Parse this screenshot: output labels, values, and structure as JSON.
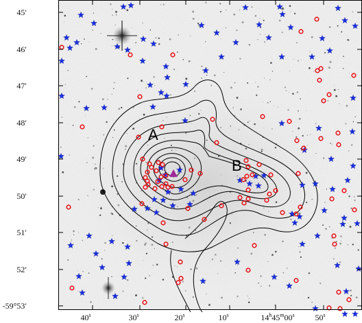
{
  "figure": {
    "y_ticks": [
      "45′",
      "46′",
      "47′",
      "48′",
      "49′",
      "50′",
      "51′",
      "52′",
      "-59°53′"
    ],
    "x_ticks": [
      {
        "sup": "s",
        "prefix": "",
        "main": "40",
        "sub": "s"
      },
      {
        "prefix": "",
        "main": "30",
        "sub": "s"
      },
      {
        "prefix": "",
        "main": "20",
        "sub": "s"
      },
      {
        "prefix": "",
        "main": "10",
        "sub": "s"
      },
      {
        "prefix": "14",
        "main": "45",
        "sub": "m",
        "tail": "00",
        "tail_sub": "s"
      },
      {
        "prefix": "",
        "main": "50",
        "sub": "s"
      }
    ],
    "x_tick_text": [
      "40s",
      "30s",
      "20s",
      "10s",
      "14h45m00s",
      "50s"
    ],
    "region_labels": [
      "A",
      "B"
    ],
    "colors": {
      "background": "#efefef",
      "stars": "#1a2fe0",
      "circles": "#e8141a",
      "contours": "#000000",
      "triangle": "#a0289a"
    },
    "marker_legend": {
      "blue_star": "star-marker",
      "red_circle": "circle-marker",
      "magenta_triangle": "triangle-marker"
    }
  }
}
